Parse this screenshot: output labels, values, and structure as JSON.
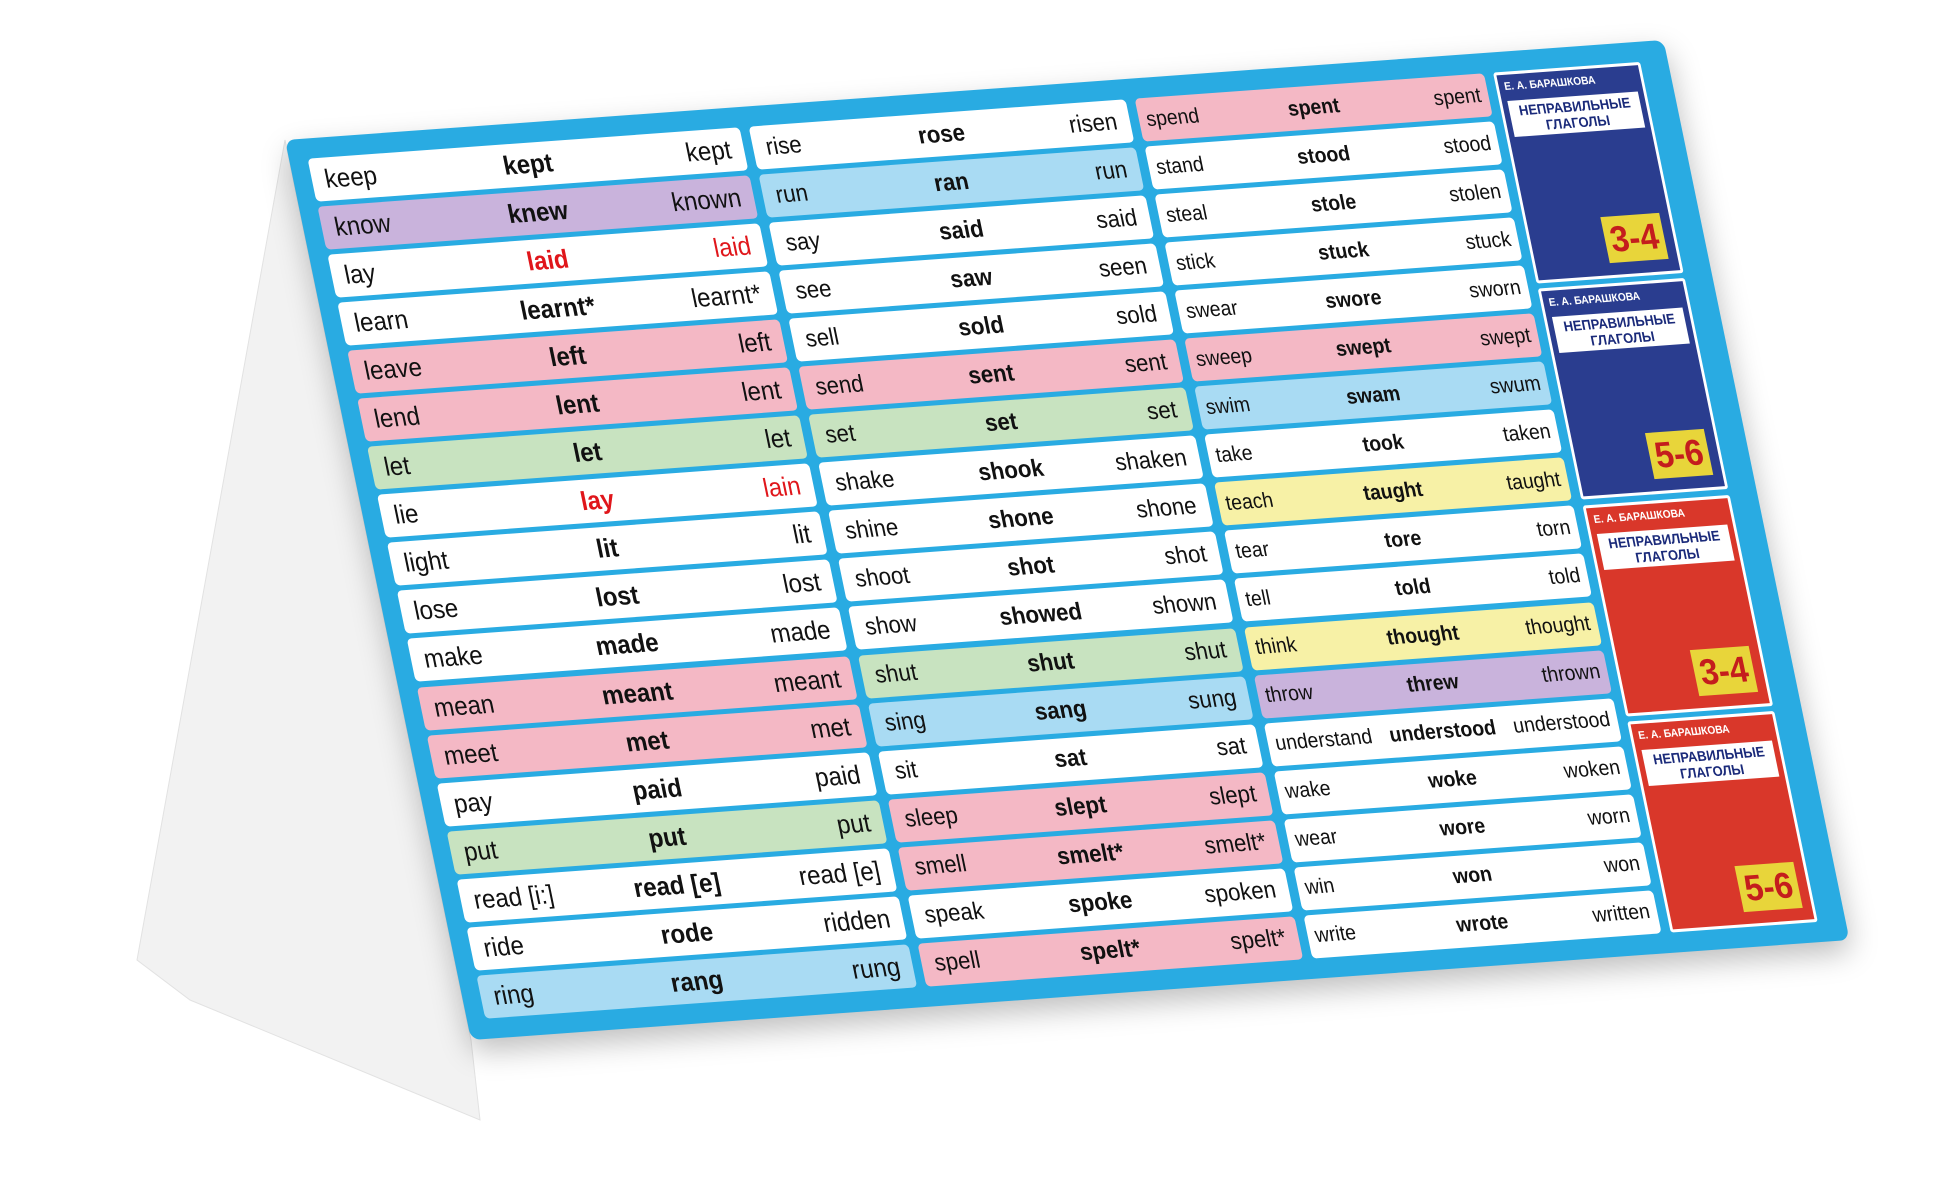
{
  "columns": [
    {
      "rows": [
        {
          "forms": [
            "keep",
            "kept",
            "kept"
          ],
          "bg": "#ffffff"
        },
        {
          "forms": [
            "know",
            "knew",
            "known"
          ],
          "bg": "#c9b3dc"
        },
        {
          "forms": [
            "lay",
            "laid",
            "laid"
          ],
          "bg": "#ffffff",
          "ink": "#e0161b"
        },
        {
          "forms": [
            "learn",
            "learnt*",
            "learnt*"
          ],
          "bg": "#ffffff"
        },
        {
          "forms": [
            "leave",
            "left",
            "left"
          ],
          "bg": "#f4b8c5"
        },
        {
          "forms": [
            "lend",
            "lent",
            "lent"
          ],
          "bg": "#f4b8c5"
        },
        {
          "forms": [
            "let",
            "let",
            "let"
          ],
          "bg": "#c8e3c0"
        },
        {
          "forms": [
            "lie",
            "lay",
            "lain"
          ],
          "bg": "#ffffff",
          "ink": "#e0161b"
        },
        {
          "forms": [
            "light",
            "lit",
            "lit"
          ],
          "bg": "#ffffff"
        },
        {
          "forms": [
            "lose",
            "lost",
            "lost"
          ],
          "bg": "#ffffff"
        },
        {
          "forms": [
            "make",
            "made",
            "made"
          ],
          "bg": "#ffffff"
        },
        {
          "forms": [
            "mean",
            "meant",
            "meant"
          ],
          "bg": "#f4b8c5"
        },
        {
          "forms": [
            "meet",
            "met",
            "met"
          ],
          "bg": "#f4b8c5"
        },
        {
          "forms": [
            "pay",
            "paid",
            "paid"
          ],
          "bg": "#ffffff"
        },
        {
          "forms": [
            "put",
            "put",
            "put"
          ],
          "bg": "#c8e3c0"
        },
        {
          "forms": [
            "read [i:]",
            "read [e]",
            "read [e]"
          ],
          "bg": "#ffffff"
        },
        {
          "forms": [
            "ride",
            "rode",
            "ridden"
          ],
          "bg": "#ffffff"
        },
        {
          "forms": [
            "ring",
            "rang",
            "rung"
          ],
          "bg": "#a9dbf3"
        }
      ]
    },
    {
      "rows": [
        {
          "forms": [
            "rise",
            "rose",
            "risen"
          ],
          "bg": "#ffffff"
        },
        {
          "forms": [
            "run",
            "ran",
            "run"
          ],
          "bg": "#a9dbf3"
        },
        {
          "forms": [
            "say",
            "said",
            "said"
          ],
          "bg": "#ffffff"
        },
        {
          "forms": [
            "see",
            "saw",
            "seen"
          ],
          "bg": "#ffffff"
        },
        {
          "forms": [
            "sell",
            "sold",
            "sold"
          ],
          "bg": "#ffffff"
        },
        {
          "forms": [
            "send",
            "sent",
            "sent"
          ],
          "bg": "#f4b8c5"
        },
        {
          "forms": [
            "set",
            "set",
            "set"
          ],
          "bg": "#c8e3c0"
        },
        {
          "forms": [
            "shake",
            "shook",
            "shaken"
          ],
          "bg": "#ffffff"
        },
        {
          "forms": [
            "shine",
            "shone",
            "shone"
          ],
          "bg": "#ffffff"
        },
        {
          "forms": [
            "shoot",
            "shot",
            "shot"
          ],
          "bg": "#ffffff"
        },
        {
          "forms": [
            "show",
            "showed",
            "shown"
          ],
          "bg": "#ffffff"
        },
        {
          "forms": [
            "shut",
            "shut",
            "shut"
          ],
          "bg": "#c8e3c0"
        },
        {
          "forms": [
            "sing",
            "sang",
            "sung"
          ],
          "bg": "#a9dbf3"
        },
        {
          "forms": [
            "sit",
            "sat",
            "sat"
          ],
          "bg": "#ffffff"
        },
        {
          "forms": [
            "sleep",
            "slept",
            "slept"
          ],
          "bg": "#f4b8c5"
        },
        {
          "forms": [
            "smell",
            "smelt*",
            "smelt*"
          ],
          "bg": "#f4b8c5"
        },
        {
          "forms": [
            "speak",
            "spoke",
            "spoken"
          ],
          "bg": "#ffffff"
        },
        {
          "forms": [
            "spell",
            "spelt*",
            "spelt*"
          ],
          "bg": "#f4b8c5"
        }
      ]
    },
    {
      "rows": [
        {
          "forms": [
            "spend",
            "spent",
            "spent"
          ],
          "bg": "#f4b8c5"
        },
        {
          "forms": [
            "stand",
            "stood",
            "stood"
          ],
          "bg": "#ffffff"
        },
        {
          "forms": [
            "steal",
            "stole",
            "stolen"
          ],
          "bg": "#ffffff"
        },
        {
          "forms": [
            "stick",
            "stuck",
            "stuck"
          ],
          "bg": "#ffffff"
        },
        {
          "forms": [
            "swear",
            "swore",
            "sworn"
          ],
          "bg": "#ffffff"
        },
        {
          "forms": [
            "sweep",
            "swept",
            "swept"
          ],
          "bg": "#f4b8c5"
        },
        {
          "forms": [
            "swim",
            "swam",
            "swum"
          ],
          "bg": "#a9dbf3"
        },
        {
          "forms": [
            "take",
            "took",
            "taken"
          ],
          "bg": "#ffffff"
        },
        {
          "forms": [
            "teach",
            "taught",
            "taught"
          ],
          "bg": "#f7f1a6"
        },
        {
          "forms": [
            "tear",
            "tore",
            "torn"
          ],
          "bg": "#ffffff"
        },
        {
          "forms": [
            "tell",
            "told",
            "told"
          ],
          "bg": "#ffffff"
        },
        {
          "forms": [
            "think",
            "thought",
            "thought"
          ],
          "bg": "#f7f1a6"
        },
        {
          "forms": [
            "throw",
            "threw",
            "thrown"
          ],
          "bg": "#c9b3dc"
        },
        {
          "forms": [
            "understand",
            "understood",
            "understood"
          ],
          "bg": "#ffffff"
        },
        {
          "forms": [
            "wake",
            "woke",
            "woken"
          ],
          "bg": "#ffffff"
        },
        {
          "forms": [
            "wear",
            "wore",
            "worn"
          ],
          "bg": "#ffffff"
        },
        {
          "forms": [
            "win",
            "won",
            "won"
          ],
          "bg": "#ffffff"
        },
        {
          "forms": [
            "write",
            "wrote",
            "written"
          ],
          "bg": "#ffffff"
        }
      ]
    }
  ],
  "books": [
    {
      "author": "Е. А. БАРАШКОВА",
      "title": "НЕПРАВИЛЬНЫЕ ГЛАГОЛЫ",
      "grade": "3-4",
      "color": "#2a3d8f"
    },
    {
      "author": "Е. А. БАРАШКОВА",
      "title": "НЕПРАВИЛЬНЫЕ ГЛАГОЛЫ",
      "grade": "5-6",
      "color": "#2a3d8f"
    },
    {
      "author": "Е. А. БАРАШКОВА",
      "title": "НЕПРАВИЛЬНЫЕ ГЛАГОЛЫ",
      "grade": "3-4",
      "color": "#d9372a"
    },
    {
      "author": "Е. А. БАРАШКОВА",
      "title": "НЕПРАВИЛЬНЫЕ ГЛАГОЛЫ",
      "grade": "5-6",
      "color": "#d9372a"
    }
  ]
}
